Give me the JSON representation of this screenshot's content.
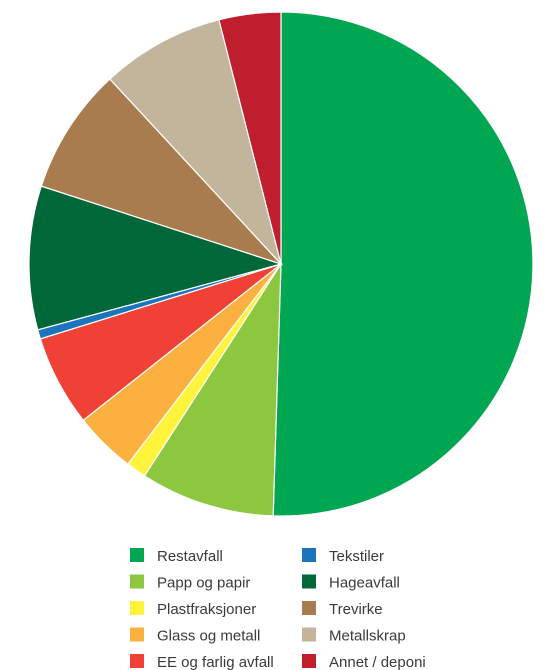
{
  "chart_data": {
    "type": "pie",
    "title": "",
    "slices": [
      {
        "label": "Restavfall",
        "value": 51.0,
        "color": "#00a651"
      },
      {
        "label": "Papp og papir",
        "value": 8.7,
        "color": "#8dc63f"
      },
      {
        "label": "Plastfraksjoner",
        "value": 1.3,
        "color": "#fff33b"
      },
      {
        "label": "Glass og metall",
        "value": 4.0,
        "color": "#fbb040"
      },
      {
        "label": "EE og farlig avfall",
        "value": 5.9,
        "color": "#ef4136"
      },
      {
        "label": "Tekstiler",
        "value": 0.6,
        "color": "#1c75bc"
      },
      {
        "label": "Hageavfall",
        "value": 9.3,
        "color": "#006838"
      },
      {
        "label": "Trevirke",
        "value": 8.2,
        "color": "#a97c50"
      },
      {
        "label": "Metallskrap",
        "value": 8.0,
        "color": "#c2b59b"
      },
      {
        "label": "Annet / deponi",
        "value": 4.0,
        "color": "#be1e2d"
      }
    ],
    "legend": {
      "position": "bottom",
      "columns": [
        [
          "Restavfall",
          "Papp og papir",
          "Plastfraksjoner",
          "Glass og metall",
          "EE og farlig avfall"
        ],
        [
          "Tekstiler",
          "Hageavfall",
          "Trevirke",
          "Metallskrap",
          "Annet / deponi"
        ]
      ]
    }
  }
}
